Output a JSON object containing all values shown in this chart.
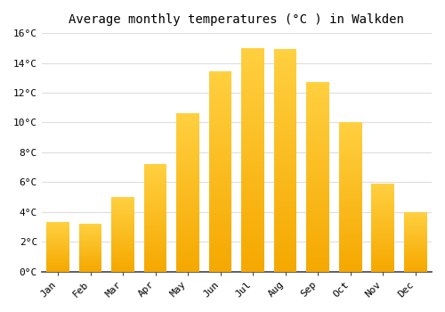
{
  "title": "Average monthly temperatures (°C ) in Walkden",
  "months": [
    "Jan",
    "Feb",
    "Mar",
    "Apr",
    "May",
    "Jun",
    "Jul",
    "Aug",
    "Sep",
    "Oct",
    "Nov",
    "Dec"
  ],
  "values": [
    3.3,
    3.2,
    5.0,
    7.2,
    10.6,
    13.4,
    15.0,
    14.9,
    12.7,
    10.0,
    5.9,
    4.0
  ],
  "bar_color_bottom": "#F5A800",
  "bar_color_top": "#FFD040",
  "background_color": "#FFFFFF",
  "grid_color": "#DDDDDD",
  "ylim": [
    0,
    16
  ],
  "yticks": [
    0,
    2,
    4,
    6,
    8,
    10,
    12,
    14,
    16
  ],
  "ytick_labels": [
    "0°C",
    "2°C",
    "4°C",
    "6°C",
    "8°C",
    "10°C",
    "12°C",
    "14°C",
    "16°C"
  ],
  "title_fontsize": 10,
  "tick_fontsize": 8,
  "font_family": "monospace",
  "bar_width": 0.7
}
